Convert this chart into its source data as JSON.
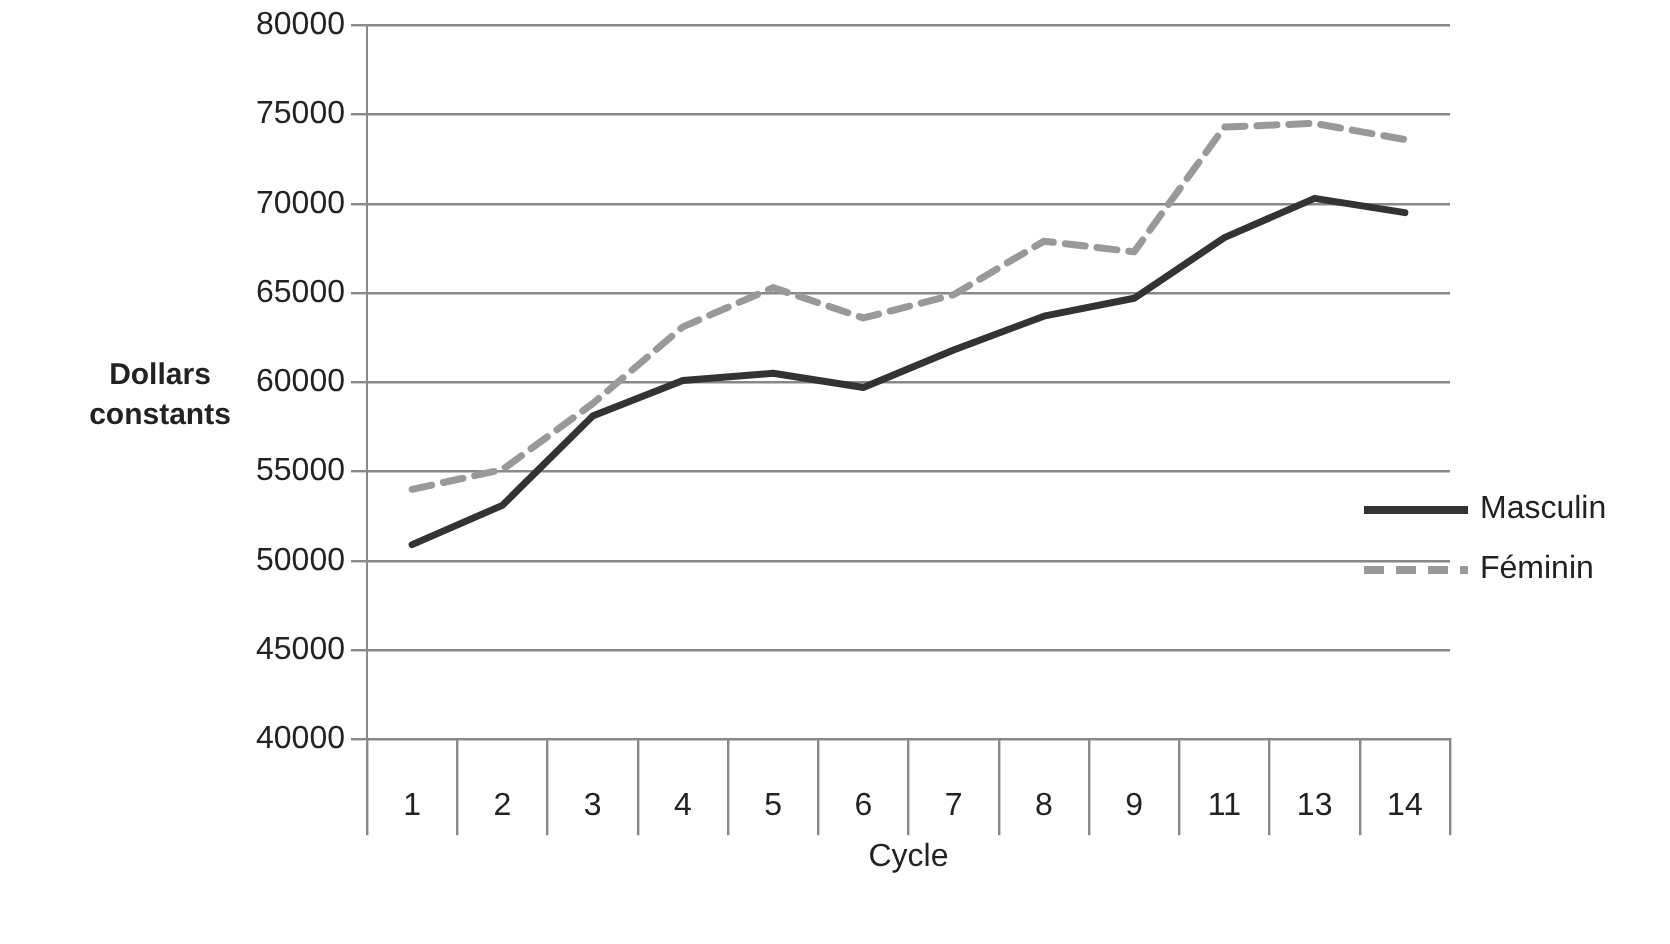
{
  "chart_data": {
    "type": "line",
    "xlabel": "Cycle",
    "ylabel": "Dollars constants",
    "categories": [
      "1",
      "2",
      "3",
      "4",
      "5",
      "6",
      "7",
      "8",
      "9",
      "11",
      "13",
      "14"
    ],
    "series": [
      {
        "name": "Masculin",
        "color": "#333333",
        "line_style": "solid",
        "values": [
          50900,
          53100,
          58100,
          60100,
          60500,
          59700,
          61800,
          63700,
          64700,
          68100,
          70300,
          69500
        ]
      },
      {
        "name": "Féminin",
        "color": "#999999",
        "line_style": "dashed",
        "values": [
          54000,
          55100,
          58800,
          63100,
          65300,
          63600,
          64900,
          67900,
          67300,
          74300,
          74500,
          73600
        ]
      }
    ],
    "ylim": [
      40000,
      80000
    ],
    "yticks": [
      40000,
      45000,
      50000,
      55000,
      60000,
      65000,
      70000,
      75000,
      80000
    ],
    "grid": "y",
    "legend": "right",
    "marker": "none"
  }
}
